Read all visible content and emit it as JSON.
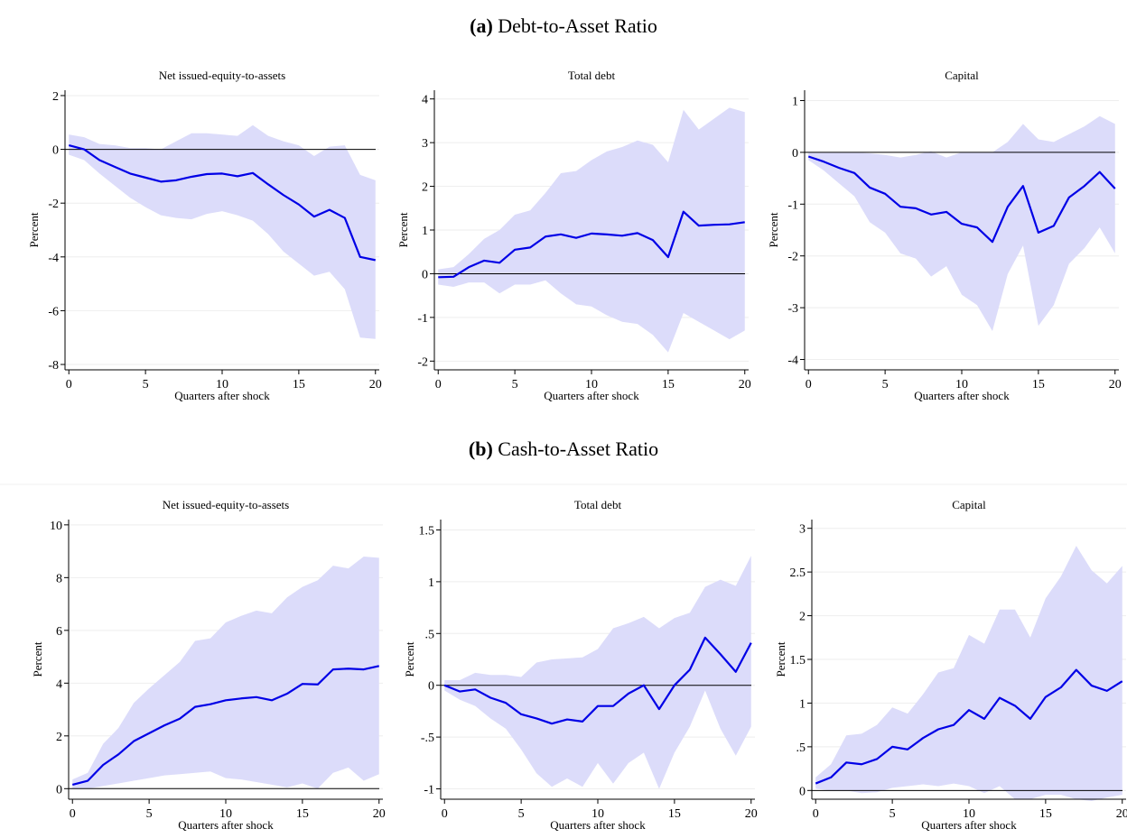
{
  "figure_panels": [
    {
      "label": "(a)",
      "title": "Debt-to-Asset Ratio"
    },
    {
      "label": "(b)",
      "title": "Cash-to-Asset Ratio"
    }
  ],
  "chart_data": [
    {
      "type": "line",
      "title": "Net issued-equity-to-assets",
      "xlabel": "Quarters after shock",
      "ylabel": "Percent",
      "x": [
        0,
        1,
        2,
        3,
        4,
        5,
        6,
        7,
        8,
        9,
        10,
        11,
        12,
        13,
        14,
        15,
        16,
        17,
        18,
        19,
        20
      ],
      "values": [
        0.15,
        0,
        -0.4,
        -0.65,
        -0.9,
        -1.05,
        -1.2,
        -1.15,
        -1.02,
        -0.92,
        -0.9,
        -1.0,
        -0.88,
        -1.3,
        -1.7,
        -2.05,
        -2.5,
        -2.25,
        -2.55,
        -4.0,
        -4.12
      ],
      "upper": [
        0.55,
        0.45,
        0.2,
        0.15,
        0.05,
        0.05,
        0.0,
        0.3,
        0.6,
        0.6,
        0.55,
        0.5,
        0.9,
        0.5,
        0.3,
        0.15,
        -0.25,
        0.1,
        0.15,
        -0.95,
        -1.15
      ],
      "lower": [
        -0.2,
        -0.4,
        -0.9,
        -1.35,
        -1.8,
        -2.15,
        -2.45,
        -2.55,
        -2.6,
        -2.4,
        -2.3,
        -2.45,
        -2.65,
        -3.15,
        -3.8,
        -4.25,
        -4.7,
        -4.55,
        -5.2,
        -7.0,
        -7.05
      ],
      "color": "#0000e6",
      "band_color": "#dcdcfa",
      "hline": 0,
      "grid": true,
      "xlim": [
        -0.25,
        20.25
      ],
      "xticks": [
        0,
        5,
        10,
        15,
        20
      ],
      "ylim": [
        -8.2,
        2.2
      ],
      "yticks": [
        -8,
        -6,
        -4,
        -2,
        0,
        2
      ]
    },
    {
      "type": "line",
      "title": "Total debt",
      "xlabel": "Quarters after shock",
      "ylabel": "Percent",
      "x": [
        0,
        1,
        2,
        3,
        4,
        5,
        6,
        7,
        8,
        9,
        10,
        11,
        12,
        13,
        14,
        15,
        16,
        17,
        18,
        19,
        20
      ],
      "values": [
        -0.08,
        -0.07,
        0.15,
        0.3,
        0.25,
        0.55,
        0.6,
        0.85,
        0.9,
        0.82,
        0.92,
        0.9,
        0.87,
        0.93,
        0.77,
        0.38,
        1.42,
        1.1,
        1.12,
        1.13,
        1.18
      ],
      "upper": [
        0.1,
        0.15,
        0.45,
        0.8,
        1.0,
        1.35,
        1.45,
        1.85,
        2.3,
        2.35,
        2.6,
        2.8,
        2.9,
        3.05,
        2.95,
        2.55,
        3.75,
        3.3,
        3.55,
        3.8,
        3.7
      ],
      "lower": [
        -0.25,
        -0.3,
        -0.2,
        -0.2,
        -0.45,
        -0.25,
        -0.25,
        -0.15,
        -0.45,
        -0.7,
        -0.75,
        -0.95,
        -1.1,
        -1.15,
        -1.4,
        -1.8,
        -0.9,
        -1.1,
        -1.3,
        -1.5,
        -1.3
      ],
      "color": "#0000e6",
      "band_color": "#dcdcfa",
      "hline": 0,
      "grid": true,
      "xlim": [
        -0.25,
        20.25
      ],
      "xticks": [
        0,
        5,
        10,
        15,
        20
      ],
      "ylim": [
        -2.2,
        4.2
      ],
      "yticks": [
        -2,
        -1,
        0,
        1,
        2,
        3,
        4
      ]
    },
    {
      "type": "line",
      "title": "Capital",
      "xlabel": "Quarters after shock",
      "ylabel": "Percent",
      "x": [
        0,
        1,
        2,
        3,
        4,
        5,
        6,
        7,
        8,
        9,
        10,
        11,
        12,
        13,
        14,
        15,
        16,
        17,
        18,
        19,
        20
      ],
      "values": [
        -0.08,
        -0.18,
        -0.3,
        -0.4,
        -0.68,
        -0.8,
        -1.05,
        -1.08,
        -1.2,
        -1.15,
        -1.38,
        -1.45,
        -1.73,
        -1.05,
        -0.65,
        -1.55,
        -1.42,
        -0.87,
        -0.65,
        -0.38,
        -0.7
      ],
      "upper": [
        0,
        0,
        0,
        0,
        -0.02,
        -0.05,
        -0.1,
        -0.05,
        0.02,
        -0.1,
        0.0,
        0.0,
        0.0,
        0.2,
        0.55,
        0.25,
        0.2,
        0.35,
        0.5,
        0.7,
        0.55
      ],
      "lower": [
        -0.15,
        -0.35,
        -0.6,
        -0.85,
        -1.35,
        -1.55,
        -1.95,
        -2.05,
        -2.4,
        -2.2,
        -2.75,
        -2.95,
        -3.45,
        -2.35,
        -1.8,
        -3.35,
        -2.95,
        -2.15,
        -1.85,
        -1.45,
        -1.95
      ],
      "color": "#0000e6",
      "band_color": "#dcdcfa",
      "hline": 0,
      "grid": true,
      "xlim": [
        -0.25,
        20.25
      ],
      "xticks": [
        0,
        5,
        10,
        15,
        20
      ],
      "ylim": [
        -4.2,
        1.2
      ],
      "yticks": [
        -4,
        -3,
        -2,
        -1,
        0,
        1
      ]
    },
    {
      "type": "line",
      "title": "Net issued-equity-to-assets",
      "xlabel": "Quarters after shock",
      "ylabel": "Percent",
      "x": [
        0,
        1,
        2,
        3,
        4,
        5,
        6,
        7,
        8,
        9,
        10,
        11,
        12,
        13,
        14,
        15,
        16,
        17,
        18,
        19,
        20
      ],
      "values": [
        0.15,
        0.3,
        0.9,
        1.3,
        1.8,
        2.1,
        2.4,
        2.65,
        3.1,
        3.2,
        3.35,
        3.42,
        3.47,
        3.35,
        3.6,
        3.97,
        3.95,
        4.52,
        4.55,
        4.52,
        4.65
      ],
      "upper": [
        0.35,
        0.6,
        1.7,
        2.3,
        3.25,
        3.8,
        4.3,
        4.8,
        5.6,
        5.7,
        6.3,
        6.55,
        6.75,
        6.65,
        7.25,
        7.65,
        7.9,
        8.45,
        8.35,
        8.8,
        8.75
      ],
      "lower": [
        0.0,
        0.0,
        0.1,
        0.2,
        0.3,
        0.4,
        0.5,
        0.55,
        0.6,
        0.65,
        0.4,
        0.35,
        0.25,
        0.15,
        0.05,
        0.2,
        0.0,
        0.6,
        0.8,
        0.3,
        0.55
      ],
      "color": "#0000e6",
      "band_color": "#dcdcfa",
      "hline": 0,
      "grid": true,
      "xlim": [
        -0.25,
        20.25
      ],
      "xticks": [
        0,
        5,
        10,
        15,
        20
      ],
      "ylim": [
        -0.4,
        10.2
      ],
      "yticks": [
        0,
        2,
        4,
        6,
        8,
        10
      ]
    },
    {
      "type": "line",
      "title": "Total debt",
      "xlabel": "Quarters after shock",
      "ylabel": "Percent",
      "x": [
        0,
        1,
        2,
        3,
        4,
        5,
        6,
        7,
        8,
        9,
        10,
        11,
        12,
        13,
        14,
        15,
        16,
        17,
        18,
        19,
        20
      ],
      "values": [
        0,
        -0.06,
        -0.04,
        -0.12,
        -0.17,
        -0.28,
        -0.32,
        -0.37,
        -0.33,
        -0.35,
        -0.2,
        -0.2,
        -0.08,
        0.0,
        -0.23,
        0.0,
        0.15,
        0.46,
        0.3,
        0.13,
        0.41
      ],
      "upper": [
        0.05,
        0.05,
        0.12,
        0.1,
        0.1,
        0.08,
        0.22,
        0.25,
        0.26,
        0.27,
        0.35,
        0.55,
        0.6,
        0.66,
        0.55,
        0.65,
        0.7,
        0.95,
        1.02,
        0.96,
        1.25
      ],
      "lower": [
        -0.05,
        -0.14,
        -0.2,
        -0.32,
        -0.42,
        -0.62,
        -0.85,
        -0.98,
        -0.9,
        -0.98,
        -0.75,
        -0.95,
        -0.75,
        -0.65,
        -1.0,
        -0.65,
        -0.4,
        -0.05,
        -0.42,
        -0.68,
        -0.4
      ],
      "color": "#0000e6",
      "band_color": "#dcdcfa",
      "hline": 0,
      "grid": true,
      "xlim": [
        -0.25,
        20.25
      ],
      "xticks": [
        0,
        5,
        10,
        15,
        20
      ],
      "ylim": [
        -1.1,
        1.6
      ],
      "yticks": [
        -1,
        {
          "value": -0.5,
          "label": "-.5"
        },
        0,
        {
          "value": 0.5,
          "label": ".5"
        },
        1,
        1.5
      ]
    },
    {
      "type": "line",
      "title": "Capital",
      "xlabel": "Quarters after shock",
      "ylabel": "Percent",
      "x": [
        0,
        1,
        2,
        3,
        4,
        5,
        6,
        7,
        8,
        9,
        10,
        11,
        12,
        13,
        14,
        15,
        16,
        17,
        18,
        19,
        20
      ],
      "values": [
        0.08,
        0.15,
        0.32,
        0.3,
        0.36,
        0.5,
        0.47,
        0.6,
        0.7,
        0.75,
        0.92,
        0.82,
        1.06,
        0.97,
        0.82,
        1.07,
        1.18,
        1.38,
        1.2,
        1.14,
        1.25
      ],
      "upper": [
        0.15,
        0.3,
        0.63,
        0.65,
        0.75,
        0.95,
        0.88,
        1.1,
        1.35,
        1.4,
        1.78,
        1.68,
        2.07,
        2.07,
        1.75,
        2.2,
        2.45,
        2.8,
        2.52,
        2.37,
        2.57
      ],
      "lower": [
        0.02,
        0.0,
        0.0,
        -0.03,
        -0.02,
        0.03,
        0.05,
        0.07,
        0.05,
        0.08,
        0.05,
        -0.03,
        0.05,
        -0.1,
        -0.1,
        -0.05,
        -0.05,
        -0.1,
        -0.12,
        -0.08,
        -0.05
      ],
      "color": "#0000e6",
      "band_color": "#dcdcfa",
      "hline": 0,
      "grid": true,
      "xlim": [
        -0.25,
        20.25
      ],
      "xticks": [
        0,
        5,
        10,
        15,
        20
      ],
      "ylim": [
        -0.1,
        3.1
      ],
      "yticks": [
        0,
        {
          "value": 0.5,
          "label": ".5"
        },
        1,
        1.5,
        2,
        2.5,
        3
      ]
    }
  ]
}
